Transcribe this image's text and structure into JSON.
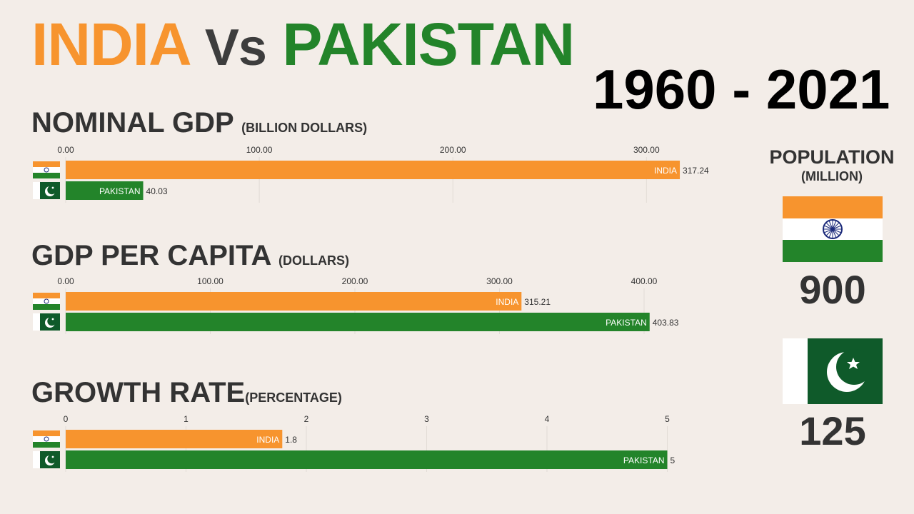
{
  "header": {
    "india": "INDIA",
    "vs": "Vs",
    "pakistan": "PAKISTAN",
    "years": "1960 - 2021"
  },
  "colors": {
    "india": "#f7942e",
    "pakistan": "#23842a",
    "grid": "#e2dcd6",
    "text": "#333333"
  },
  "chart_data": [
    {
      "type": "bar",
      "orientation": "horizontal",
      "title": "NOMINAL GDP",
      "unit": "(BILLION DOLLARS)",
      "categories": [
        "INDIA",
        "PAKISTAN"
      ],
      "values": [
        317.24,
        40.03
      ],
      "value_labels": [
        "317.24",
        "40.03"
      ],
      "xlim": [
        0,
        350
      ],
      "ticks": [
        0,
        100,
        200,
        300
      ],
      "tick_labels": [
        "0.00",
        "100.00",
        "200.00",
        "300.00"
      ],
      "grid": true
    },
    {
      "type": "bar",
      "orientation": "horizontal",
      "title": "GDP PER CAPITA",
      "unit": "(DOLLARS)",
      "categories": [
        "INDIA",
        "PAKISTAN"
      ],
      "values": [
        315.21,
        403.83
      ],
      "value_labels": [
        "315.21",
        "403.83"
      ],
      "xlim": [
        0,
        470
      ],
      "ticks": [
        0,
        100,
        200,
        300,
        400
      ],
      "tick_labels": [
        "0.00",
        "100.00",
        "200.00",
        "300.00",
        "400.00"
      ],
      "grid": true
    },
    {
      "type": "bar",
      "orientation": "horizontal",
      "title": "GROWTH RATE",
      "unit": "(PERCENTAGE)",
      "categories": [
        "INDIA",
        "PAKISTAN"
      ],
      "values": [
        1.8,
        5
      ],
      "value_labels": [
        "1.8",
        "5"
      ],
      "xlim": [
        0,
        5.6
      ],
      "ticks": [
        0,
        1,
        2,
        3,
        4,
        5
      ],
      "tick_labels": [
        "0",
        "1",
        "2",
        "3",
        "4",
        "5"
      ],
      "grid": true
    }
  ],
  "population": {
    "title": "POPULATION",
    "unit": "(MILLION)",
    "india_value": "900",
    "pakistan_value": "125"
  }
}
